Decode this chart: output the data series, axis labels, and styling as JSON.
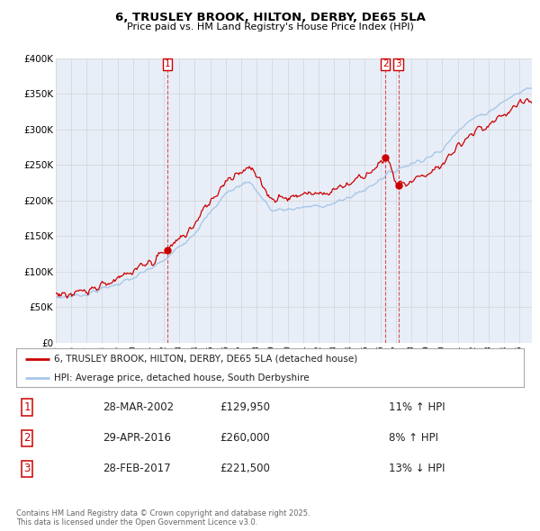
{
  "title": "6, TRUSLEY BROOK, HILTON, DERBY, DE65 5LA",
  "subtitle": "Price paid vs. HM Land Registry's House Price Index (HPI)",
  "ylim": [
    0,
    400000
  ],
  "yticks": [
    0,
    50000,
    100000,
    150000,
    200000,
    250000,
    300000,
    350000,
    400000
  ],
  "ytick_labels": [
    "£0",
    "£50K",
    "£100K",
    "£150K",
    "£200K",
    "£250K",
    "£300K",
    "£350K",
    "£400K"
  ],
  "xlim_start": 1995.0,
  "xlim_end": 2025.8,
  "line1_color": "#cc0000",
  "line2_color": "#a8c8e8",
  "grid_color": "#cccccc",
  "background_color": "#e8eef8",
  "legend_label1": "6, TRUSLEY BROOK, HILTON, DERBY, DE65 5LA (detached house)",
  "legend_label2": "HPI: Average price, detached house, South Derbyshire",
  "sale1_date": "28-MAR-2002",
  "sale1_price": "£129,950",
  "sale1_hpi": "11% ↑ HPI",
  "sale2_date": "29-APR-2016",
  "sale2_price": "£260,000",
  "sale2_hpi": "8% ↑ HPI",
  "sale3_date": "28-FEB-2017",
  "sale3_price": "£221,500",
  "sale3_hpi": "13% ↓ HPI",
  "footnote": "Contains HM Land Registry data © Crown copyright and database right 2025.\nThis data is licensed under the Open Government Licence v3.0.",
  "sale1_year": 2002.24,
  "sale2_year": 2016.33,
  "sale3_year": 2017.16,
  "sale1_value": 129950,
  "sale2_value": 260000,
  "sale3_value": 221500
}
